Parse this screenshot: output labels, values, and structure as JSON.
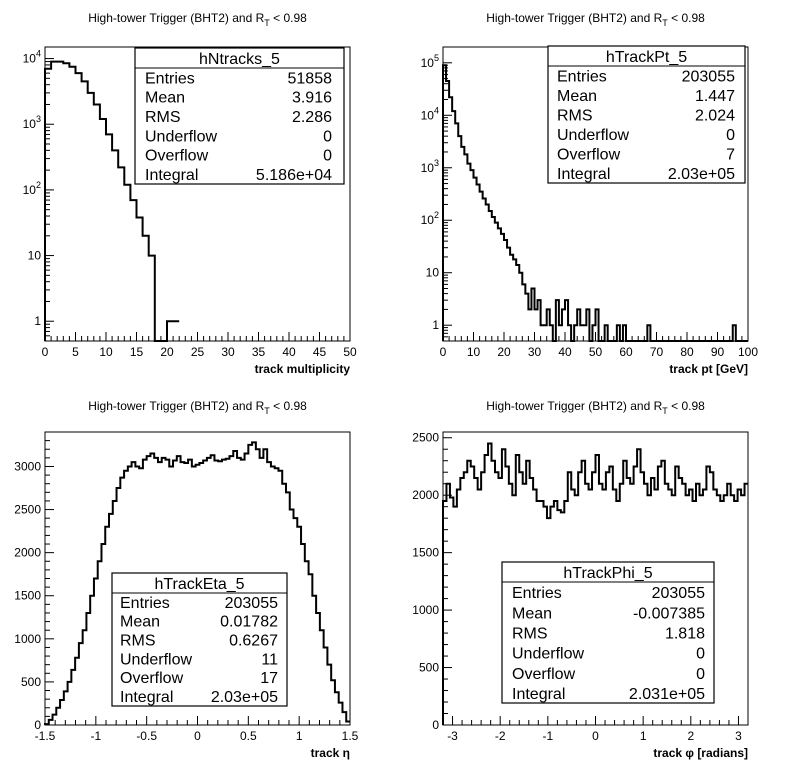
{
  "chart_data": [
    {
      "type": "histogram",
      "title": "High-tower Trigger (BHT2) and R_T < 0.98",
      "xlabel": "track multiplicity",
      "ylabel": "",
      "yscale": "log",
      "xlim": [
        0,
        50
      ],
      "ylim": [
        0.5,
        15000
      ],
      "bin_width": 1,
      "x_ticks": [
        "0",
        "5",
        "10",
        "15",
        "20",
        "25",
        "30",
        "35",
        "40",
        "45",
        "50"
      ],
      "y_ticks": [
        "1",
        "10",
        "10^2",
        "10^3",
        "10^4"
      ],
      "stats": {
        "name": "hNtracks_5",
        "rows": [
          {
            "label": "Entries",
            "value": "51858"
          },
          {
            "label": "Mean",
            "value": "3.916"
          },
          {
            "label": "RMS",
            "value": "2.286"
          },
          {
            "label": "Underflow",
            "value": "0"
          },
          {
            "label": "Overflow",
            "value": "0"
          },
          {
            "label": "Integral",
            "value": "5.186e+04"
          }
        ]
      },
      "values": [
        7000,
        9000,
        9000,
        8500,
        7500,
        6000,
        4500,
        3000,
        2000,
        1200,
        700,
        400,
        220,
        120,
        70,
        38,
        20,
        10,
        0,
        0,
        1,
        1
      ]
    },
    {
      "type": "histogram",
      "title": "High-tower Trigger (BHT2) and R_T < 0.98",
      "xlabel": "track pt [GeV]",
      "ylabel": "",
      "yscale": "log",
      "xlim": [
        0,
        100
      ],
      "ylim": [
        0.5,
        200000
      ],
      "bin_width": 1,
      "x_ticks": [
        "0",
        "10",
        "20",
        "30",
        "40",
        "50",
        "60",
        "70",
        "80",
        "90",
        "100"
      ],
      "y_ticks": [
        "1",
        "10",
        "10^2",
        "10^3",
        "10^4",
        "10^5"
      ],
      "stats": {
        "name": "hTrackPt_5",
        "rows": [
          {
            "label": "Entries",
            "value": "203055"
          },
          {
            "label": "Mean",
            "value": "1.447"
          },
          {
            "label": "RMS",
            "value": "2.024"
          },
          {
            "label": "Underflow",
            "value": "0"
          },
          {
            "label": "Overflow",
            "value": "7"
          },
          {
            "label": "Integral",
            "value": "2.03e+05"
          }
        ]
      },
      "values": [
        90000,
        45000,
        22000,
        12000,
        7000,
        4000,
        2500,
        1800,
        1200,
        900,
        650,
        480,
        350,
        260,
        200,
        150,
        115,
        90,
        70,
        55,
        42,
        30,
        22,
        18,
        14,
        10,
        6,
        4,
        2,
        5,
        2,
        3,
        1,
        1,
        2,
        1,
        0,
        3,
        1,
        2,
        3,
        1,
        0,
        1,
        2,
        1,
        1,
        2,
        0,
        1,
        2,
        0,
        0,
        1,
        0,
        0,
        0,
        1,
        0,
        1,
        0,
        0,
        0,
        0,
        0,
        0,
        0,
        1,
        0,
        0,
        0,
        0,
        0,
        0,
        0,
        0,
        0,
        0,
        0,
        0,
        0,
        0,
        0,
        0,
        0,
        0,
        0,
        0,
        0,
        0,
        0,
        0,
        0,
        0,
        0,
        1,
        0,
        0,
        0,
        0
      ]
    },
    {
      "type": "histogram",
      "title": "High-tower Trigger (BHT2) and R_T < 0.98",
      "xlabel": "track η",
      "ylabel": "",
      "yscale": "linear",
      "xlim": [
        -1.5,
        1.5
      ],
      "ylim": [
        0,
        3400
      ],
      "x_ticks": [
        "-1.5",
        "-1",
        "-0.5",
        "0",
        "0.5",
        "1",
        "1.5"
      ],
      "y_ticks": [
        "0",
        "500",
        "1000",
        "1500",
        "2000",
        "2500",
        "3000"
      ],
      "stats": {
        "name": "hTrackEta_5",
        "rows": [
          {
            "label": "Entries",
            "value": "203055"
          },
          {
            "label": "Mean",
            "value": "0.01782"
          },
          {
            "label": "RMS",
            "value": "0.6267"
          },
          {
            "label": "Underflow",
            "value": "11"
          },
          {
            "label": "Overflow",
            "value": "17"
          },
          {
            "label": "Integral",
            "value": "2.03e+05"
          }
        ]
      },
      "values": [
        10,
        60,
        120,
        200,
        290,
        390,
        500,
        640,
        780,
        950,
        1100,
        1300,
        1500,
        1700,
        1900,
        2100,
        2300,
        2450,
        2600,
        2750,
        2870,
        2950,
        3000,
        3050,
        3000,
        2980,
        3080,
        3120,
        3150,
        3100,
        3050,
        3100,
        3080,
        3000,
        3070,
        3120,
        3050,
        3040,
        3080,
        3000,
        3020,
        3040,
        3070,
        3100,
        3130,
        3070,
        3060,
        3080,
        3090,
        3120,
        3180,
        3100,
        3080,
        3150,
        3250,
        3280,
        3200,
        3100,
        3200,
        3050,
        3000,
        2980,
        2950,
        2800,
        2700,
        2500,
        2400,
        2300,
        2100,
        1900,
        1750,
        1500,
        1300,
        1100,
        900,
        700,
        520,
        380,
        260,
        150,
        40
      ]
    },
    {
      "type": "histogram",
      "title": "High-tower Trigger (BHT2) and R_T < 0.98",
      "xlabel": "track φ [radians]",
      "ylabel": "",
      "yscale": "linear",
      "xlim": [
        -3.2,
        3.2
      ],
      "ylim": [
        0,
        2550
      ],
      "x_ticks": [
        "-3",
        "-2",
        "-1",
        "0",
        "1",
        "2",
        "3"
      ],
      "y_ticks": [
        "0",
        "500",
        "1000",
        "1500",
        "2000",
        "2500"
      ],
      "stats": {
        "name": "hTrackPhi_5",
        "rows": [
          {
            "label": "Entries",
            "value": "203055"
          },
          {
            "label": "Mean",
            "value": "-0.007385"
          },
          {
            "label": "RMS",
            "value": "1.818"
          },
          {
            "label": "Underflow",
            "value": "0"
          },
          {
            "label": "Overflow",
            "value": "0"
          },
          {
            "label": "Integral",
            "value": "2.031e+05"
          }
        ]
      },
      "values": [
        1950,
        2100,
        1980,
        1900,
        2050,
        2150,
        2200,
        2300,
        2250,
        2150,
        2050,
        2200,
        2350,
        2450,
        2300,
        2200,
        2150,
        2400,
        2250,
        2100,
        2000,
        2350,
        2200,
        2100,
        2300,
        2150,
        2050,
        1950,
        1950,
        1900,
        1800,
        1900,
        1950,
        1870,
        1850,
        1950,
        2200,
        2050,
        2000,
        2200,
        2300,
        2100,
        2050,
        2200,
        2350,
        2100,
        2050,
        2200,
        2250,
        2050,
        1950,
        2100,
        2300,
        2150,
        2100,
        2250,
        2400,
        2200,
        2100,
        2000,
        2150,
        2050,
        2250,
        2300,
        2100,
        2050,
        2000,
        2250,
        2150,
        2100,
        2000,
        2050,
        1950,
        2100,
        2000,
        2050,
        2250,
        2200,
        2050,
        2000,
        1950,
        2000,
        2100,
        2000,
        1950,
        2050,
        2000,
        2100
      ]
    }
  ]
}
